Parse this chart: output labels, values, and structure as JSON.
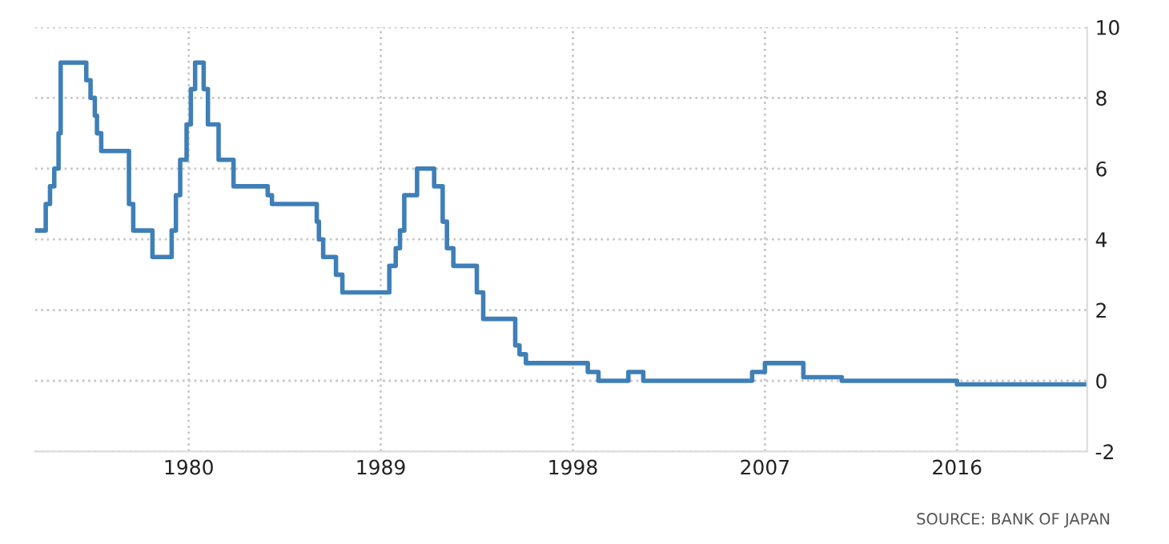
{
  "chart_data": {
    "type": "step",
    "grid": true,
    "line_style": "solid",
    "marker": "none",
    "xlim": [
      1972.8,
      2022.1
    ],
    "xticks": [
      1980,
      1989,
      1998,
      2007,
      2016
    ],
    "ylim": [
      -2,
      10
    ],
    "yticks": [
      -2,
      0,
      2,
      4,
      6,
      8,
      10
    ],
    "x": [
      1972.8,
      1973.3,
      1973.5,
      1973.7,
      1973.9,
      1974.0,
      1975.2,
      1975.4,
      1975.6,
      1975.7,
      1975.9,
      1977.2,
      1977.4,
      1977.8,
      1978.3,
      1979.2,
      1979.4,
      1979.6,
      1979.9,
      1980.1,
      1980.3,
      1980.7,
      1980.9,
      1981.1,
      1981.4,
      1982.1,
      1983.7,
      1983.9,
      1986.0,
      1986.1,
      1986.3,
      1986.5,
      1986.9,
      1987.2,
      1989.4,
      1989.7,
      1989.9,
      1990.1,
      1990.3,
      1990.7,
      1991.5,
      1991.7,
      1991.9,
      1992.1,
      1992.4,
      1992.9,
      1993.5,
      1993.8,
      1995.3,
      1995.5,
      1995.8,
      1998.7,
      1999.2,
      2000.6,
      2001.3,
      2006.4,
      2007.0,
      2008.8,
      2009.0,
      2010.6,
      2016.0,
      2022.0
    ],
    "series": [
      {
        "color": "#3f7fb8",
        "values": [
          4.25,
          5.0,
          5.5,
          6.0,
          7.0,
          9.0,
          8.5,
          8.0,
          7.5,
          7.0,
          6.5,
          5.0,
          4.25,
          4.25,
          3.5,
          4.25,
          5.25,
          6.25,
          7.25,
          8.25,
          9.0,
          8.25,
          7.25,
          7.25,
          6.25,
          5.5,
          5.25,
          5.0,
          4.5,
          4.0,
          3.5,
          3.5,
          3.0,
          2.5,
          3.25,
          3.75,
          4.25,
          5.25,
          5.25,
          6.0,
          5.5,
          5.5,
          4.5,
          3.75,
          3.25,
          3.25,
          2.5,
          1.75,
          1.0,
          0.75,
          0.5,
          0.25,
          0.0,
          0.25,
          0.0,
          0.25,
          0.5,
          0.1,
          0.1,
          0.0,
          -0.1,
          -0.1
        ]
      }
    ],
    "annotations": [
      "SOURCE: BANK OF JAPAN"
    ]
  }
}
